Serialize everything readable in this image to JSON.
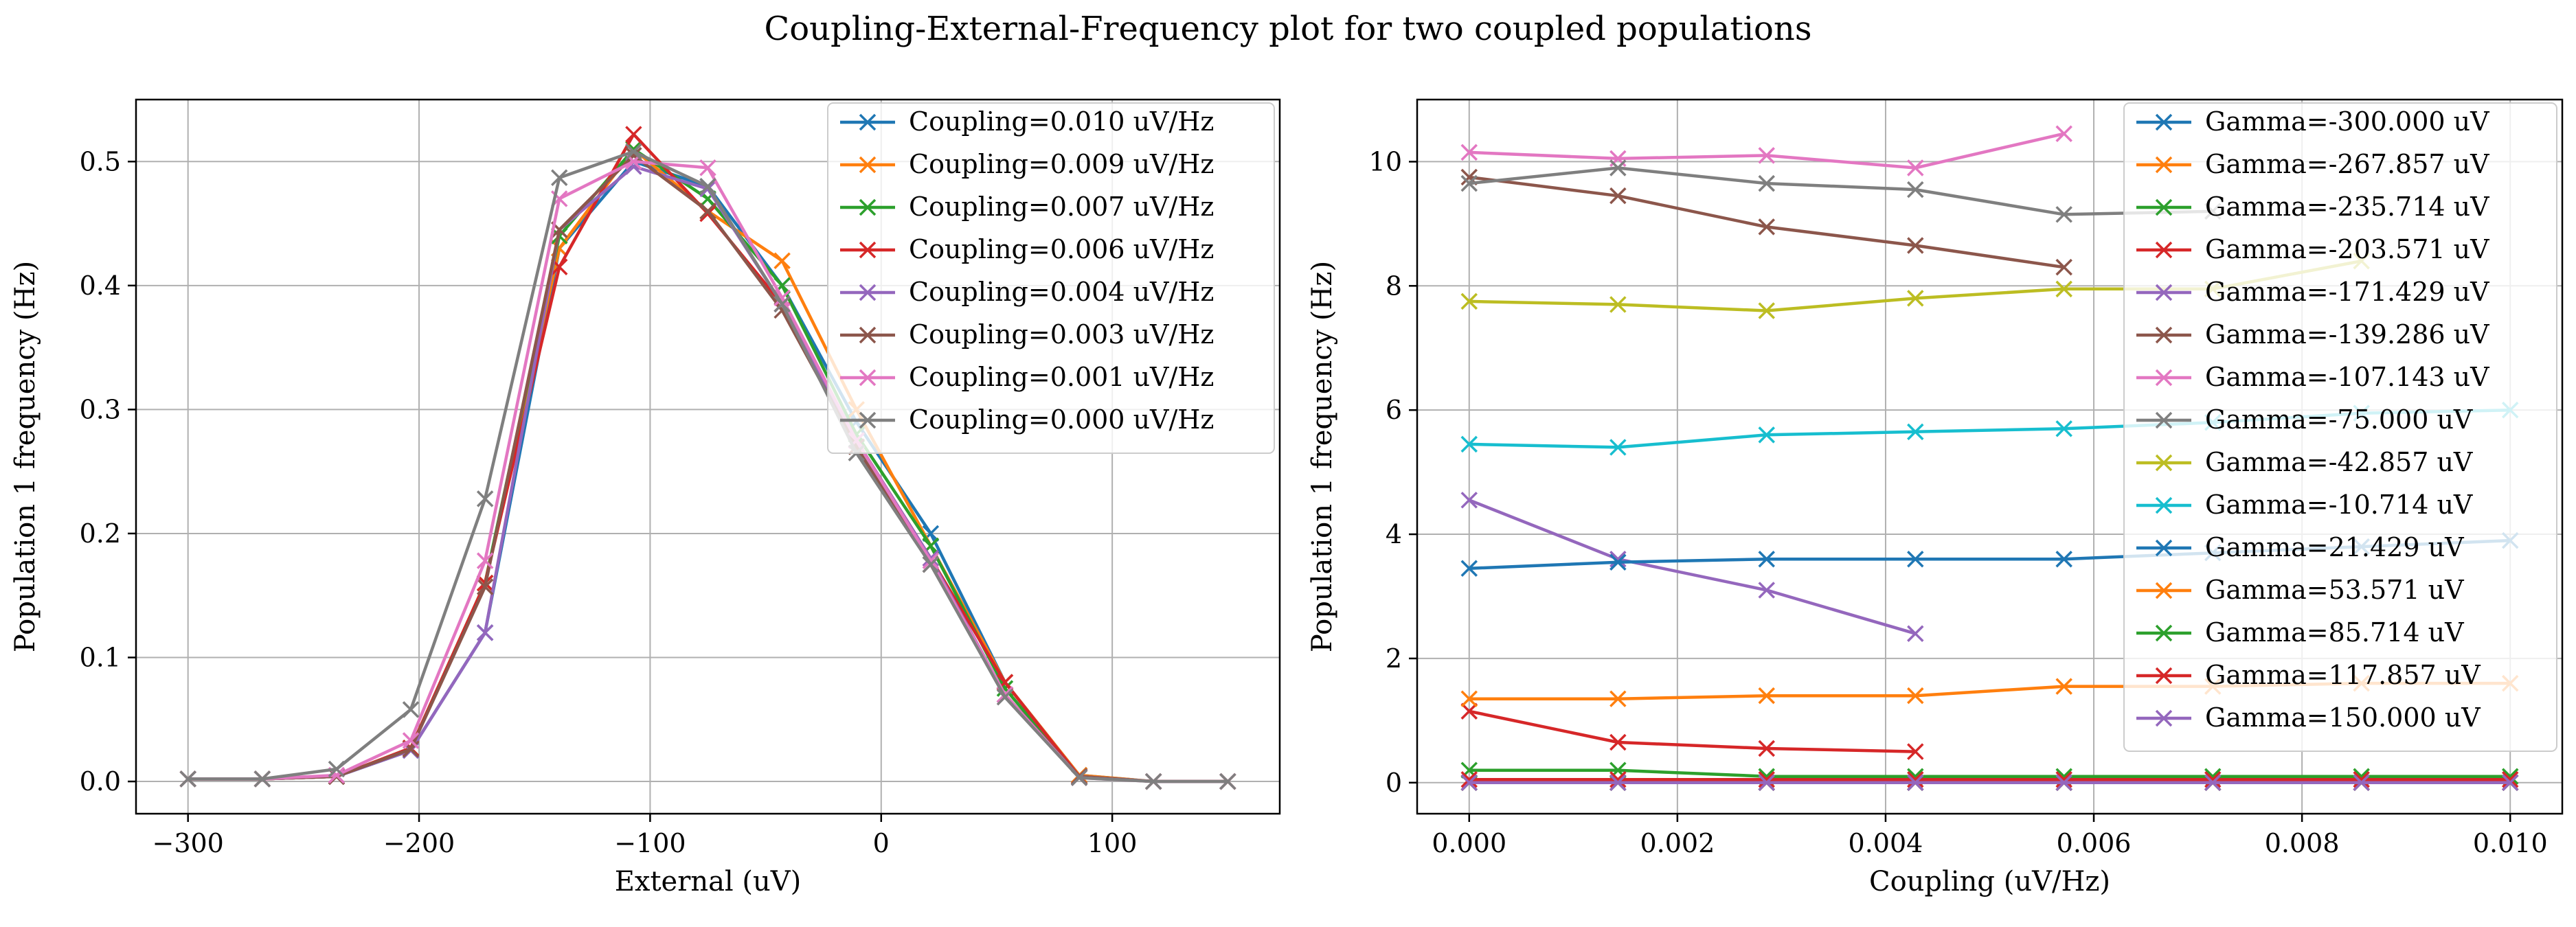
{
  "figure": {
    "title": "Coupling-External-Frequency plot for two coupled populations"
  },
  "colors": [
    "#1f77b4",
    "#ff7f0e",
    "#2ca02c",
    "#d62728",
    "#9467bd",
    "#8c564b",
    "#e377c2",
    "#7f7f7f",
    "#bcbd22",
    "#17becf"
  ],
  "chart_data": [
    {
      "type": "line",
      "title": "",
      "xlabel": "External (uV)",
      "ylabel": "Population 1 frequency (Hz)",
      "xlim": [
        -322.5,
        172.5
      ],
      "ylim": [
        -0.026,
        0.55
      ],
      "xticks": [
        -300,
        -200,
        -100,
        0,
        100
      ],
      "xtick_labels": [
        "−300",
        "−200",
        "−100",
        "0",
        "100"
      ],
      "yticks": [
        0.0,
        0.1,
        0.2,
        0.3,
        0.4,
        0.5
      ],
      "ytick_labels": [
        "0.0",
        "0.1",
        "0.2",
        "0.3",
        "0.4",
        "0.5"
      ],
      "grid": true,
      "marker": "x",
      "legend_position": "upper right",
      "x": [
        -300,
        -267.857,
        -235.714,
        -203.571,
        -171.429,
        -139.286,
        -107.143,
        -75.0,
        -42.857,
        -10.714,
        21.429,
        53.571,
        85.714,
        117.857,
        150.0
      ],
      "series": [
        {
          "name": "Coupling=0.010 uV/Hz",
          "values": [
            0.002,
            0.002,
            0.004,
            0.025,
            0.12,
            0.43,
            0.5,
            0.48,
            0.4,
            0.29,
            0.2,
            0.08,
            0.005,
            0.0,
            0.0
          ]
        },
        {
          "name": "Coupling=0.009 uV/Hz",
          "values": [
            0.002,
            0.002,
            0.004,
            0.026,
            0.16,
            0.43,
            0.51,
            0.46,
            0.42,
            0.3,
            0.19,
            0.08,
            0.005,
            0.0,
            0.0
          ]
        },
        {
          "name": "Coupling=0.007 uV/Hz",
          "values": [
            0.002,
            0.002,
            0.004,
            0.027,
            0.16,
            0.44,
            0.51,
            0.47,
            0.4,
            0.28,
            0.19,
            0.075,
            0.004,
            0.0,
            0.0
          ]
        },
        {
          "name": "Coupling=0.006 uV/Hz",
          "values": [
            0.002,
            0.002,
            0.004,
            0.027,
            0.16,
            0.415,
            0.522,
            0.458,
            0.385,
            0.275,
            0.18,
            0.08,
            0.004,
            0.0,
            0.0
          ]
        },
        {
          "name": "Coupling=0.004 uV/Hz",
          "values": [
            0.002,
            0.002,
            0.004,
            0.025,
            0.12,
            0.445,
            0.496,
            0.478,
            0.385,
            0.275,
            0.18,
            0.07,
            0.004,
            0.0,
            0.0
          ]
        },
        {
          "name": "Coupling=0.003 uV/Hz",
          "values": [
            0.002,
            0.002,
            0.004,
            0.026,
            0.157,
            0.445,
            0.505,
            0.46,
            0.38,
            0.27,
            0.175,
            0.07,
            0.004,
            0.0,
            0.0
          ]
        },
        {
          "name": "Coupling=0.001 uV/Hz",
          "values": [
            0.002,
            0.002,
            0.005,
            0.033,
            0.178,
            0.47,
            0.5,
            0.495,
            0.39,
            0.275,
            0.178,
            0.07,
            0.003,
            0.0,
            0.0
          ]
        },
        {
          "name": "Coupling=0.000 uV/Hz",
          "values": [
            0.002,
            0.002,
            0.01,
            0.058,
            0.228,
            0.487,
            0.508,
            0.48,
            0.385,
            0.265,
            0.175,
            0.068,
            0.003,
            0.0,
            0.0
          ]
        }
      ]
    },
    {
      "type": "line",
      "title": "",
      "xlabel": "Coupling (uV/Hz)",
      "ylabel": "Population 1 frequency (Hz)",
      "xlim": [
        -0.0005,
        0.0105
      ],
      "ylim": [
        -0.5,
        11.0
      ],
      "xticks": [
        0.0,
        0.002,
        0.004,
        0.006,
        0.008,
        0.01
      ],
      "xtick_labels": [
        "0.000",
        "0.002",
        "0.004",
        "0.006",
        "0.008",
        "0.010"
      ],
      "yticks": [
        0,
        2,
        4,
        6,
        8,
        10
      ],
      "ytick_labels": [
        "0",
        "2",
        "4",
        "6",
        "8",
        "10"
      ],
      "grid": true,
      "marker": "x",
      "legend_position": "upper right",
      "x": [
        0.0,
        0.001429,
        0.002857,
        0.004286,
        0.005714,
        0.007143,
        0.008571,
        0.01
      ],
      "series": [
        {
          "name": "Gamma=-300.000 uV",
          "values": [
            0.0,
            0.0,
            0.0,
            0.0,
            0.0,
            0.0,
            0.0,
            0.0
          ]
        },
        {
          "name": "Gamma=-267.857 uV",
          "values": [
            0.0,
            0.0,
            0.0,
            0.0,
            0.0,
            0.0,
            0.0,
            0.0
          ]
        },
        {
          "name": "Gamma=-235.714 uV",
          "values": [
            0.0,
            0.0,
            0.0,
            0.0,
            0.0,
            0.0,
            0.0,
            0.0
          ]
        },
        {
          "name": "Gamma=-203.571 uV",
          "values": [
            1.15,
            0.65,
            0.55,
            0.5,
            null,
            null,
            null,
            null
          ]
        },
        {
          "name": "Gamma=-171.429 uV",
          "values": [
            4.55,
            3.6,
            3.1,
            2.4,
            null,
            null,
            null,
            null
          ]
        },
        {
          "name": "Gamma=-139.286 uV",
          "values": [
            9.75,
            9.45,
            8.95,
            8.65,
            8.3,
            null,
            null,
            null
          ]
        },
        {
          "name": "Gamma=-107.143 uV",
          "values": [
            10.15,
            10.05,
            10.1,
            9.9,
            10.45,
            null,
            null,
            null
          ]
        },
        {
          "name": "Gamma=-75.000 uV",
          "values": [
            9.65,
            9.9,
            9.65,
            9.55,
            9.15,
            9.2,
            null,
            null
          ]
        },
        {
          "name": "Gamma=-42.857 uV",
          "values": [
            7.75,
            7.7,
            7.6,
            7.8,
            7.95,
            7.95,
            8.4,
            null
          ]
        },
        {
          "name": "Gamma=-10.714 uV",
          "values": [
            5.45,
            5.4,
            5.6,
            5.65,
            5.7,
            5.8,
            5.95,
            6.0
          ]
        },
        {
          "name": "Gamma=21.429 uV",
          "values": [
            3.45,
            3.55,
            3.6,
            3.6,
            3.6,
            3.7,
            3.8,
            3.9
          ]
        },
        {
          "name": "Gamma=53.571 uV",
          "values": [
            1.35,
            1.35,
            1.4,
            1.4,
            1.55,
            1.55,
            1.6,
            1.6
          ]
        },
        {
          "name": "Gamma=85.714 uV",
          "values": [
            0.2,
            0.2,
            0.1,
            0.1,
            0.1,
            0.1,
            0.1,
            0.1
          ]
        },
        {
          "name": "Gamma=117.857 uV",
          "values": [
            0.05,
            0.05,
            0.05,
            0.05,
            0.05,
            0.05,
            0.05,
            0.05
          ]
        },
        {
          "name": "Gamma=150.000 uV",
          "values": [
            0.0,
            0.0,
            0.0,
            0.0,
            0.0,
            0.0,
            0.0,
            0.0
          ]
        }
      ]
    }
  ]
}
